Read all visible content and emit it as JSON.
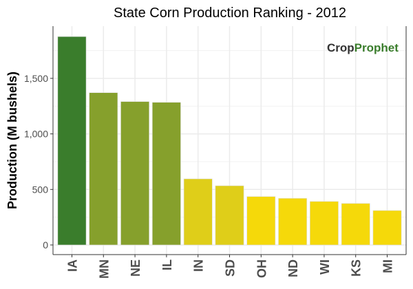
{
  "chart_data": {
    "type": "bar",
    "title": "State Corn Production Ranking - 2012",
    "xlabel": "",
    "ylabel": "Production (M bushels)",
    "categories": [
      "IA",
      "MN",
      "NE",
      "IL",
      "IN",
      "SD",
      "OH",
      "ND",
      "WI",
      "KS",
      "MI"
    ],
    "values": [
      1876,
      1371,
      1291,
      1284,
      595,
      533,
      436,
      420,
      392,
      374,
      310
    ],
    "colors": [
      "#3a7d2c",
      "#86a02c",
      "#86a02c",
      "#86a02c",
      "#dfce19",
      "#dfce19",
      "#f5d90a",
      "#f5d90a",
      "#f5d90a",
      "#f5d90a",
      "#f5d90a"
    ],
    "yticks": [
      0,
      500,
      1000,
      1500
    ],
    "ytick_labels": [
      "0",
      "500",
      "1,000",
      "1,500"
    ],
    "ylim": [
      0,
      1970
    ],
    "grid": true,
    "legend": "none"
  },
  "watermark": {
    "part1": "Crop",
    "part2": "Prophet"
  }
}
